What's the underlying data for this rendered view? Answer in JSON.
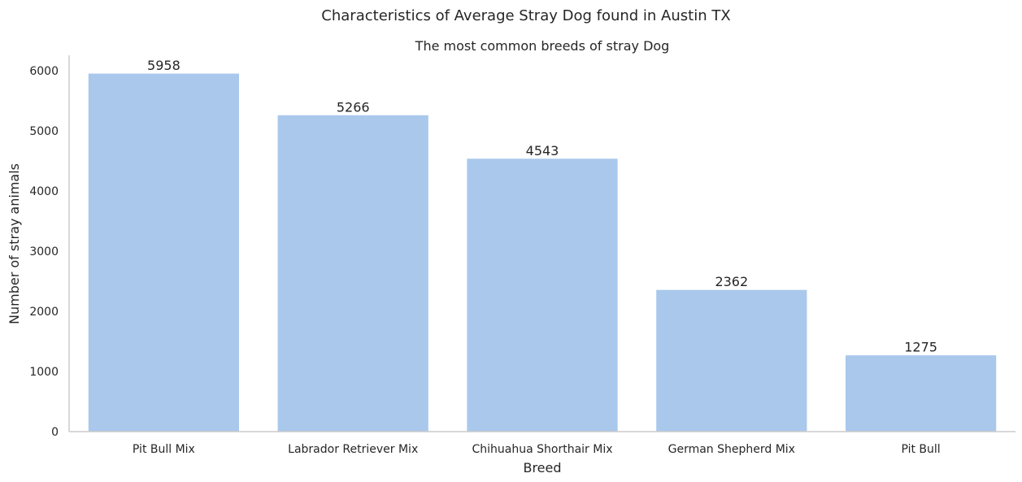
{
  "chart_data": {
    "type": "bar",
    "suptitle": "Characteristics of Average Stray Dog found in Austin TX",
    "title": "The most common breeds of stray Dog",
    "xlabel": "Breed",
    "ylabel": "Number of stray animals",
    "categories": [
      "Pit Bull Mix",
      "Labrador Retriever Mix",
      "Chihuahua Shorthair Mix",
      "German Shepherd Mix",
      "Pit Bull"
    ],
    "values": [
      5958,
      5266,
      4543,
      2362,
      1275
    ],
    "value_labels": [
      "5958",
      "5266",
      "4543",
      "2362",
      "1275"
    ],
    "yticks": [
      0,
      1000,
      2000,
      3000,
      4000,
      5000,
      6000
    ],
    "ytick_labels": [
      "0",
      "1000",
      "2000",
      "3000",
      "4000",
      "5000",
      "6000"
    ],
    "ylim": [
      0,
      6256
    ],
    "grid": false,
    "colors": {
      "bar": "#a9c8ec",
      "bar_edge": "#ffffff",
      "axis": "#cccccc",
      "text": "#262626"
    }
  }
}
